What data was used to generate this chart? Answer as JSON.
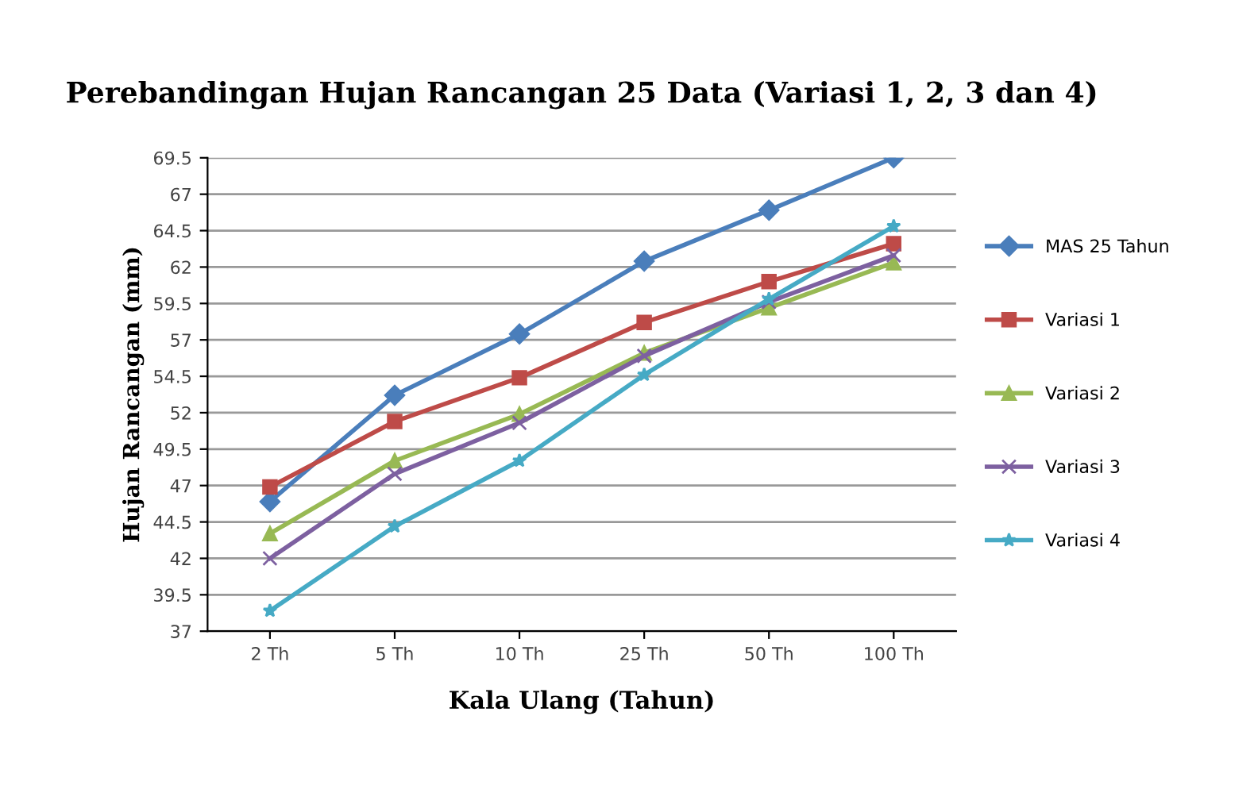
{
  "chart_data": {
    "type": "line",
    "title": "Perebandingan Hujan Rancangan 25 Data (Variasi 1, 2, 3 dan 4)",
    "xlabel": "Kala Ulang (Tahun)",
    "ylabel": "Hujan Rancangan (mm)",
    "categories": [
      "2 Th",
      "5 Th",
      "10 Th",
      "25 Th",
      "50 Th",
      "100 Th"
    ],
    "series": [
      {
        "name": "MAS 25 Tahun",
        "color": "#4a7ebb",
        "marker": "diamond",
        "values": [
          45.9,
          53.2,
          57.4,
          62.4,
          65.9,
          69.5
        ]
      },
      {
        "name": "Variasi 1",
        "color": "#be4b48",
        "marker": "square",
        "values": [
          46.9,
          51.4,
          54.4,
          58.2,
          61.0,
          63.6
        ]
      },
      {
        "name": "Variasi 2",
        "color": "#98b954",
        "marker": "triangle",
        "values": [
          43.7,
          48.7,
          51.9,
          56.1,
          59.2,
          62.3
        ]
      },
      {
        "name": "Variasi 3",
        "color": "#7d60a0",
        "marker": "cross",
        "values": [
          42.0,
          47.8,
          51.3,
          55.9,
          59.6,
          62.8
        ]
      },
      {
        "name": "Variasi 4",
        "color": "#46aac5",
        "marker": "star",
        "values": [
          38.4,
          44.2,
          48.7,
          54.6,
          59.8,
          64.8
        ]
      }
    ],
    "ylim": [
      37,
      69.5
    ],
    "yticks": [
      37,
      39.5,
      42,
      44.5,
      47,
      49.5,
      52,
      54.5,
      57,
      59.5,
      62,
      64.5,
      67,
      69.5
    ],
    "grid": "y",
    "legend": "right",
    "line_style": "solid"
  }
}
